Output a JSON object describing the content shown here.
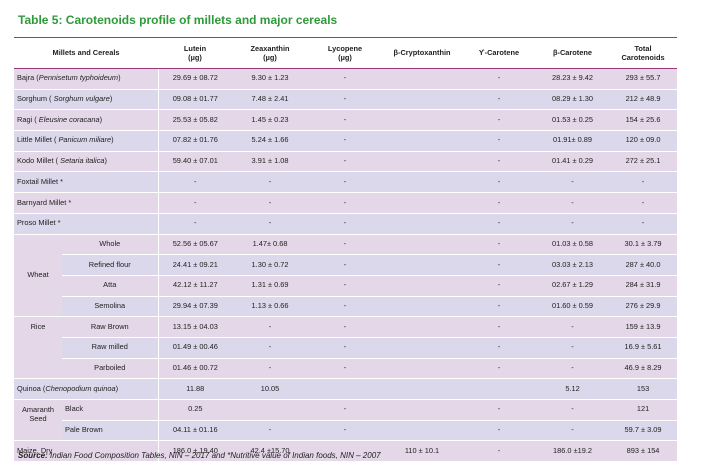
{
  "title": "Table 5: Carotenoids profile of millets and major cereals",
  "headers": {
    "name": "Millets and Cereals",
    "lutein": "Lutein",
    "lutein_unit": "(µg)",
    "zeax": "Zeaxanthin",
    "zeax_unit": "(µg)",
    "lyco": "Lycopene",
    "lyco_unit": "(µg)",
    "bcrypto": "β-Cryptoxanthin",
    "gcarot": "ϒ-Carotene",
    "bcarot": "β-Carotene",
    "total": "Total",
    "total2": "Carotenoids"
  },
  "rows": [
    {
      "pre": "Bajra (",
      "sci": "Pennisetum typhoideum",
      "post": ")",
      "lut": "29.69 ± 08.72",
      "zea": "9.30 ± 1.23",
      "lyc": "-",
      "bcr": "",
      "gca": "-",
      "bca": "28.23 ± 9.42",
      "tot": "293 ± 55.7"
    },
    {
      "pre": "Sorghum ( ",
      "sci": "Sorghum vulgare",
      "post": ")",
      "lut": "09.08 ± 01.77",
      "zea": "7.48 ± 2.41",
      "lyc": "-",
      "bcr": "",
      "gca": "-",
      "bca": "08.29 ± 1.30",
      "tot": "212 ± 48.9"
    },
    {
      "pre": "Ragi ( ",
      "sci": "Eleusine coracana",
      "post": ")",
      "lut": "25.53 ± 05.82",
      "zea": "1.45 ± 0.23",
      "lyc": "-",
      "bcr": "",
      "gca": "-",
      "bca": "01.53 ± 0.25",
      "tot": "154 ± 25.6"
    },
    {
      "pre": "Little Millet ( ",
      "sci": "Panicum miliare",
      "post": ")",
      "lut": "07.82 ± 01.76",
      "zea": "5.24 ± 1.66",
      "lyc": "-",
      "bcr": "",
      "gca": "-",
      "bca": "01.91± 0.89",
      "tot": "120 ± 09.0"
    },
    {
      "pre": "Kodo Millet ( ",
      "sci": "Setaria italica",
      "post": ")",
      "lut": "59.40 ± 07.01",
      "zea": "3.91 ± 1.08",
      "lyc": "-",
      "bcr": "",
      "gca": "-",
      "bca": "01.41 ± 0.29",
      "tot": "272 ± 25.1"
    },
    {
      "pre": "Foxtail Millet *",
      "sci": "",
      "post": "",
      "lut": "-",
      "zea": "-",
      "lyc": "-",
      "bcr": "",
      "gca": "-",
      "bca": "-",
      "tot": "-"
    },
    {
      "pre": "Barnyard Millet *",
      "sci": "",
      "post": "",
      "lut": "-",
      "zea": "-",
      "lyc": "-",
      "bcr": "",
      "gca": "-",
      "bca": "-",
      "tot": "-"
    },
    {
      "pre": "Proso Millet *",
      "sci": "",
      "post": "",
      "lut": "-",
      "zea": "-",
      "lyc": "-",
      "bcr": "",
      "gca": "-",
      "bca": "-",
      "tot": "-"
    }
  ],
  "wheat": {
    "label": "Wheat",
    "rows": [
      {
        "sub": "Whole",
        "lut": "52.56 ± 05.67",
        "zea": "1.47± 0.68",
        "lyc": "-",
        "bcr": "",
        "gca": "-",
        "bca": "01.03 ± 0.58",
        "tot": "30.1 ± 3.79"
      },
      {
        "sub": "Refined flour",
        "lut": "24.41 ± 09.21",
        "zea": "1.30 ± 0.72",
        "lyc": "-",
        "bcr": "",
        "gca": "-",
        "bca": "03.03 ± 2.13",
        "tot": "287 ± 40.0"
      },
      {
        "sub": "Atta",
        "lut": "42.12 ± 11.27",
        "zea": "1.31 ± 0.69",
        "lyc": "-",
        "bcr": "",
        "gca": "-",
        "bca": "02.67 ± 1.29",
        "tot": "284 ± 31.9"
      },
      {
        "sub": "Semolina",
        "lut": "29.94 ± 07.39",
        "zea": "1.13 ± 0.66",
        "lyc": "-",
        "bcr": "",
        "gca": "-",
        "bca": "01.60 ± 0.59",
        "tot": "276 ± 29.9"
      }
    ]
  },
  "rice": {
    "label": "Rice",
    "rows": [
      {
        "sub": "Raw Brown",
        "lut": "13.15 ± 04.03",
        "zea": "-",
        "lyc": "-",
        "bcr": "",
        "gca": "-",
        "bca": "-",
        "tot": "159 ± 13.9"
      },
      {
        "sub": "Raw milled",
        "lut": "01.49 ± 00.46",
        "zea": "-",
        "lyc": "-",
        "bcr": "",
        "gca": "-",
        "bca": "-",
        "tot": "16.9 ± 5.61"
      },
      {
        "sub": "Parboiled",
        "lut": "01.46 ± 00.72",
        "zea": "-",
        "lyc": "-",
        "bcr": "",
        "gca": "-",
        "bca": "-",
        "tot": "46.9 ± 8.29"
      }
    ]
  },
  "quinoa": {
    "pre": "Quinoa (",
    "sci": "Chenopodium quinoa",
    "post": ")",
    "lut": "11.88",
    "zea": "10.05",
    "lyc": "",
    "bcr": "",
    "gca": "",
    "bca": "5.12",
    "tot": "153"
  },
  "amaranth": {
    "label": "Amaranth Seed",
    "rows": [
      {
        "sub": "Black",
        "lut": "0.25",
        "zea": "",
        "lyc": "-",
        "bcr": "",
        "gca": "-",
        "bca": "-",
        "tot": "121"
      },
      {
        "sub": "Pale Brown",
        "lut": "04.11 ± 01.16",
        "zea": "-",
        "lyc": "-",
        "bcr": "",
        "gca": "-",
        "bca": "-",
        "tot": "59.7 ± 3.09"
      }
    ]
  },
  "maize": {
    "name": "Maize, Dry",
    "lut": "186.0 ± 19.40",
    "zea": "42.4 ±15.70",
    "lyc": "",
    "bcr": "110 ± 10.1",
    "gca": "-",
    "bca": "186.0 ±19.2",
    "tot": "893 ± 154"
  },
  "source": {
    "label": "Source:",
    "text": " Indian Food Composition Tables, NIN – 2017 and *Nutritive value of Indian foods, NIN – 2007"
  }
}
